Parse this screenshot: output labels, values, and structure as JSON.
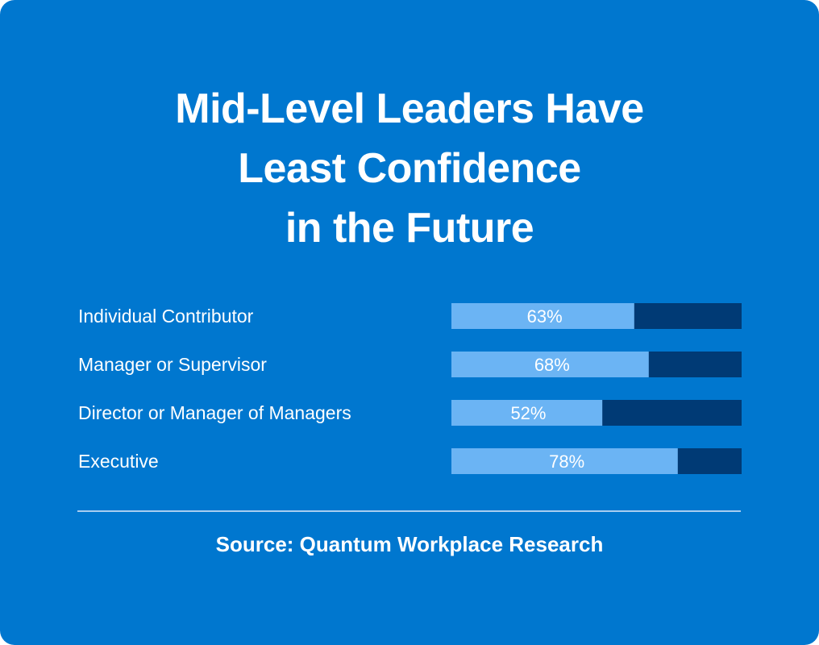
{
  "colors": {
    "background": "#0077cf",
    "bar_filled": "#6bb4f4",
    "bar_remaining": "#003a75",
    "text": "#ffffff",
    "divider": "#a8cdf0"
  },
  "title_lines": [
    "Mid-Level Leaders Have",
    "Least Confidence",
    "in the Future"
  ],
  "chart_data": {
    "type": "bar",
    "orientation": "horizontal",
    "stacked_to": 100,
    "title": "Mid-Level Leaders Have Least Confidence in the Future",
    "categories": [
      "Individual Contributor",
      "Manager or Supervisor",
      "Director or Manager of Managers",
      "Executive"
    ],
    "values": [
      63,
      68,
      52,
      78
    ],
    "value_labels": [
      "63%",
      "68%",
      "52%",
      "78%"
    ],
    "xlim": [
      0,
      100
    ],
    "grid": false
  },
  "source": "Source: Quantum Workplace Research"
}
